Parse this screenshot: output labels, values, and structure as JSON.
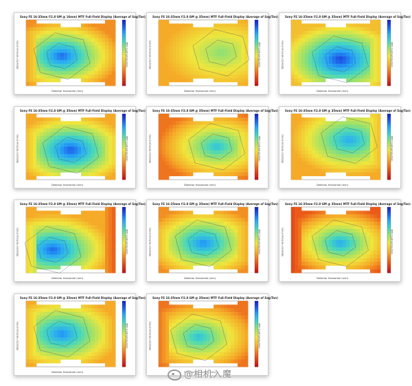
{
  "gallery": {
    "cards": [
      {
        "title": "Sony FE 16-35mm f/2.8 GM @ 16mm) MTF Full-Field Display (Average of Sag/Tan)",
        "xlabel": "Detector Horizontal (mm)",
        "ylabel": "Detector Vertical (mm)",
        "cblabel": "MTF Contrast (lp/mm)"
      },
      {
        "title": "Sony FE 16-35mm f/2.8 GM @ 35mm) MTF Full-Field Display (Average of Sag/Tan)",
        "xlabel": "Detector Horizontal (mm)",
        "ylabel": "Detector Vertical (mm)",
        "cblabel": "MTF Contrast (lp/mm)"
      },
      {
        "title": "Sony FE 16-35mm f/2.8 GM @ 35mm) MTF Full-Field Display (Average of Sag/Tan)",
        "xlabel": "Detector Horizontal (mm)",
        "ylabel": "Detector Vertical (mm)",
        "cblabel": "MTF Contrast (lp/mm)"
      },
      {
        "title": "Sony FE 16-35mm f/2.8 GM @ 35mm) MTF Full-Field Display (Average of Sag/Tan)",
        "xlabel": "Detector Horizontal (mm)",
        "ylabel": "Detector Vertical (mm)",
        "cblabel": "MTF Contrast (lp/mm)"
      },
      {
        "title": "Sony FE 16-35mm f/2.8 GM @ 35mm) MTF Full-Field Display (Average of Sag/Tan)",
        "xlabel": "Detector Horizontal (mm)",
        "ylabel": "Detector Vertical (mm)",
        "cblabel": "MTF Contrast (lp/mm)"
      },
      {
        "title": "Sony FE 16-35mm f/2.8 GM @ 35mm) MTF Full-Field Display (Average of Sag/Tan)",
        "xlabel": "Detector Horizontal (mm)",
        "ylabel": "Detector Vertical (mm)",
        "cblabel": "MTF Contrast (lp/mm)"
      },
      {
        "title": "Sony FE 16-35mm f/2.8 GM @ 35mm) MTF Full-Field Display (Average of Sag/Tan)",
        "xlabel": "Detector Horizontal (mm)",
        "ylabel": "Detector Vertical (mm)",
        "cblabel": "MTF Contrast (lp/mm)"
      },
      {
        "title": "Sony FE 16-35mm f/2.8 GM @ 35mm) MTF Full-Field Display (Average of Sag/Tan)",
        "xlabel": "Detector Horizontal (mm)",
        "ylabel": "Detector Vertical (mm)",
        "cblabel": "MTF Contrast (lp/mm)"
      },
      {
        "title": "Sony FE 16-35mm f/2.8 GM @ 35mm) MTF Full-Field Display (Average of Sag/Tan)",
        "xlabel": "Detector Horizontal (mm)",
        "ylabel": "Detector Vertical (mm)",
        "cblabel": "MTF Contrast (lp/mm)"
      },
      {
        "title": "Sony FE 16-35mm f/2.8 GM @ 35mm) MTF Full-Field Display (Average of Sag/Tan)",
        "xlabel": "Detector Horizontal (mm)",
        "ylabel": "Detector Vertical (mm)",
        "cblabel": "MTF Contrast (lp/mm)"
      },
      {
        "title": "Sony FE 16-35mm f/2.8 GM @ 35mm) MTF Full-Field Display (Average of Sag/Tan)",
        "xlabel": "Detector Horizontal (mm)",
        "ylabel": "Detector Vertical (mm)",
        "cblabel": "MTF Contrast (lp/mm)"
      }
    ],
    "watermark": "@相机入魔"
  },
  "chart_data": [
    {
      "type": "heatmap",
      "center": [
        -0.2,
        0.1
      ],
      "peak": 0.9,
      "corner": 0.25,
      "edge_left": 0.3,
      "edge_right": 0.35
    },
    {
      "type": "heatmap",
      "center": [
        0.4,
        0.0
      ],
      "peak": 0.6,
      "corner": 0.3,
      "edge_left": 0.35,
      "edge_right": 0.4
    },
    {
      "type": "heatmap",
      "center": [
        0.1,
        0.2
      ],
      "peak": 0.95,
      "corner": 0.35,
      "edge_left": 0.45,
      "edge_right": 0.4
    },
    {
      "type": "heatmap",
      "center": [
        0.0,
        0.1
      ],
      "peak": 0.92,
      "corner": 0.3,
      "edge_left": 0.35,
      "edge_right": 0.4
    },
    {
      "type": "heatmap",
      "center": [
        0.3,
        0.0
      ],
      "peak": 0.75,
      "corner": 0.2,
      "edge_left": 0.25,
      "edge_right": 0.4
    },
    {
      "type": "heatmap",
      "center": [
        0.3,
        -0.2
      ],
      "peak": 0.8,
      "corner": 0.3,
      "edge_left": 0.3,
      "edge_right": 0.35
    },
    {
      "type": "heatmap",
      "center": [
        -0.4,
        0.3
      ],
      "peak": 0.9,
      "corner": 0.3,
      "edge_left": 0.4,
      "edge_right": 0.15
    },
    {
      "type": "heatmap",
      "center": [
        0.0,
        0.1
      ],
      "peak": 0.85,
      "corner": 0.25,
      "edge_left": 0.35,
      "edge_right": 0.3
    },
    {
      "type": "heatmap",
      "center": [
        0.1,
        0.1
      ],
      "peak": 0.8,
      "corner": 0.15,
      "edge_left": 0.1,
      "edge_right": 0.4
    },
    {
      "type": "heatmap",
      "center": [
        -0.2,
        0.0
      ],
      "peak": 0.85,
      "corner": 0.3,
      "edge_left": 0.35,
      "edge_right": 0.3
    },
    {
      "type": "heatmap",
      "center": [
        -0.1,
        0.1
      ],
      "peak": 0.75,
      "corner": 0.2,
      "edge_left": 0.2,
      "edge_right": 0.35
    }
  ]
}
